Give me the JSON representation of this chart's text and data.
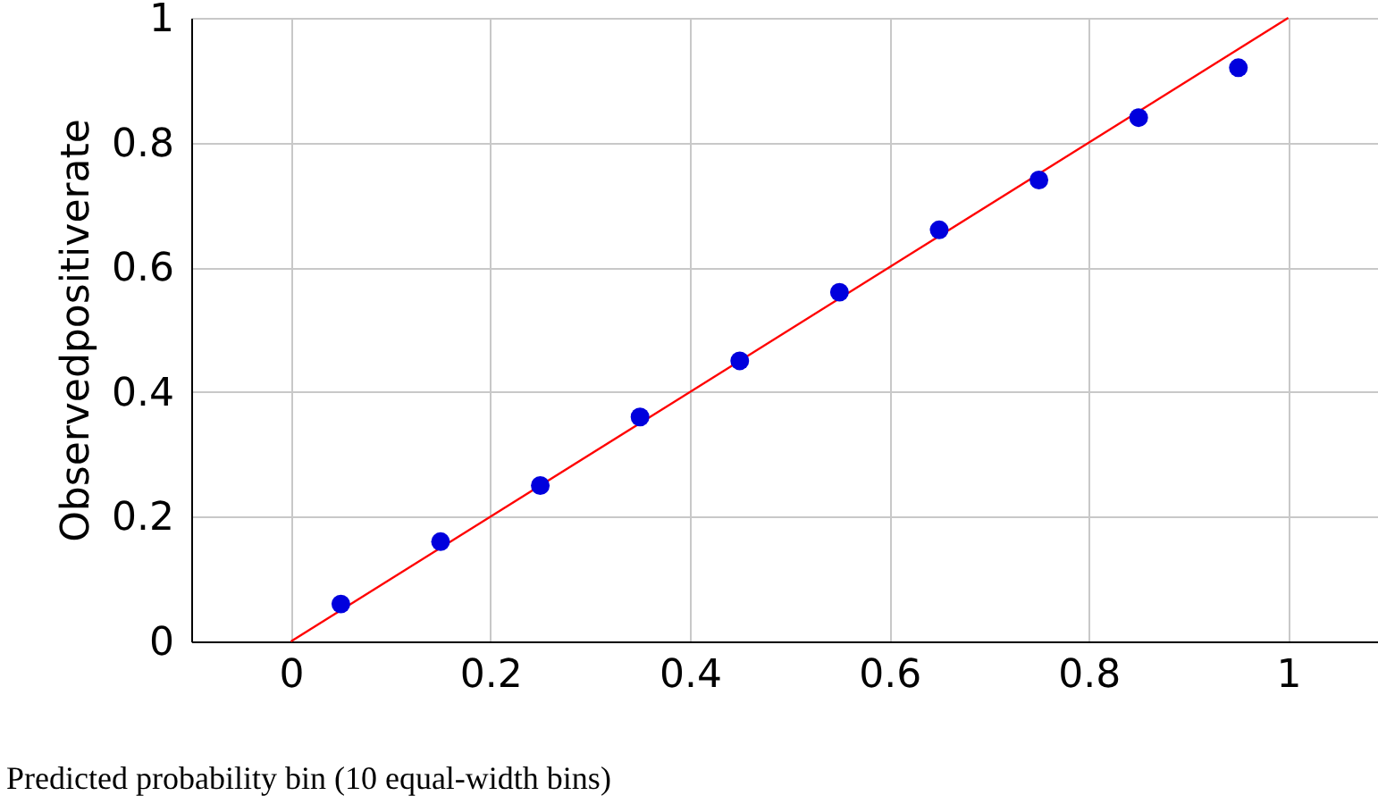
{
  "chart_data": {
    "type": "scatter",
    "xlabel": "Predicted probability bin (10 equal-width bins)",
    "ylabel": "Observedpositiverate",
    "xlim": [
      -0.1,
      1.09
    ],
    "ylim": [
      0,
      1
    ],
    "xticks": [
      0,
      0.2,
      0.4,
      0.6,
      0.8,
      1
    ],
    "yticks": [
      0,
      0.2,
      0.4,
      0.6,
      0.8,
      1
    ],
    "grid": true,
    "series": [
      {
        "marker": "circle",
        "color": "#0000dd",
        "x": [
          0.05,
          0.15,
          0.25,
          0.35,
          0.45,
          0.55,
          0.65,
          0.75,
          0.85,
          0.95
        ],
        "values": [
          0.06,
          0.16,
          0.25,
          0.36,
          0.45,
          0.56,
          0.66,
          0.74,
          0.84,
          0.92
        ]
      },
      {
        "type": "line",
        "color": "#ff0000",
        "x": [
          0,
          1
        ],
        "values": [
          0,
          1
        ]
      }
    ]
  }
}
